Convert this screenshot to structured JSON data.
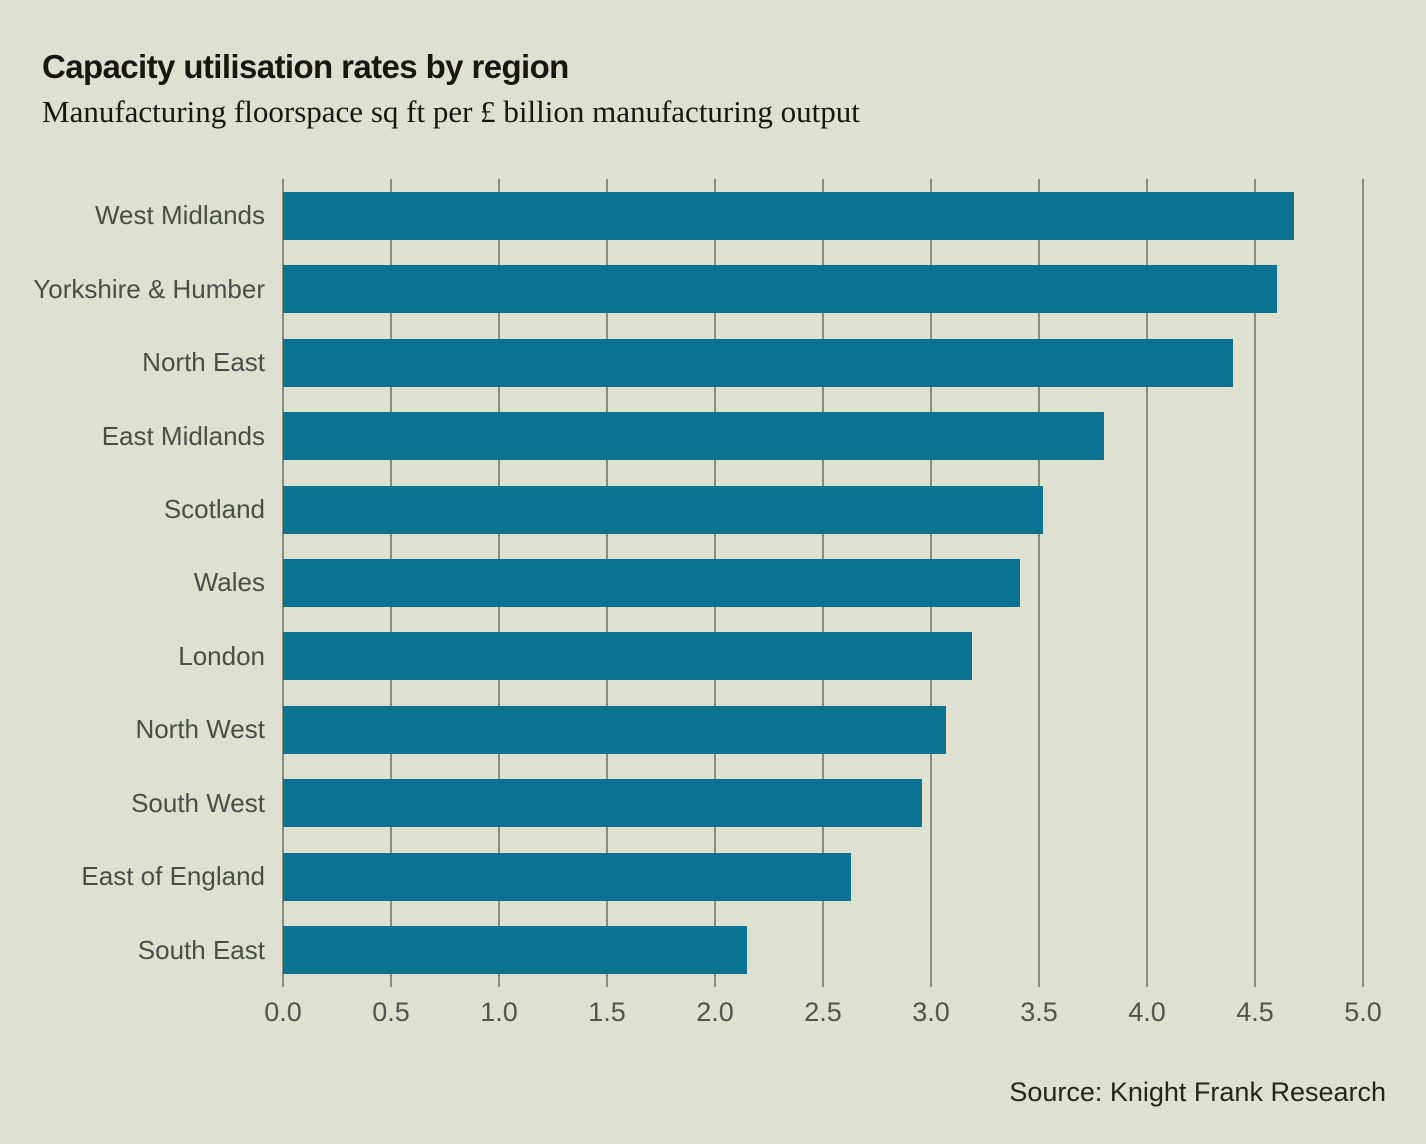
{
  "header": {
    "title": "Capacity utilisation rates by region",
    "subtitle": "Manufacturing floorspace sq ft per £ billion manufacturing output"
  },
  "footer": {
    "source": "Source: Knight Frank Research"
  },
  "colors": {
    "background": "#dee1cf",
    "bar": "#0c7292",
    "gridline": "#787d71",
    "title-text": "#17170f",
    "label-text": "#4b4e48",
    "tick-text": "#51544d",
    "source-text": "#23261f"
  },
  "chart_data": {
    "type": "bar",
    "orientation": "horizontal",
    "title": "Capacity utilisation rates by region",
    "subtitle": "Manufacturing floorspace sq ft per £ billion manufacturing output",
    "xlabel": "",
    "ylabel": "",
    "xlim": [
      0,
      5
    ],
    "x_tick_labels": [
      "0.0",
      "0.5",
      "1.0",
      "1.5",
      "2.0",
      "2.5",
      "3.0",
      "3.5",
      "4.0",
      "4.5",
      "5.0"
    ],
    "grid": "vertical",
    "legend": "none",
    "categories": [
      "West Midlands",
      "Yorkshire & Humber",
      "North East",
      "East Midlands",
      "Scotland",
      "Wales",
      "London",
      "North West",
      "South West",
      "East of England",
      "South East"
    ],
    "values": [
      4.68,
      4.6,
      4.4,
      3.8,
      3.52,
      3.41,
      3.19,
      3.07,
      2.96,
      2.63,
      2.15
    ],
    "source": "Source: Knight Frank Research"
  }
}
